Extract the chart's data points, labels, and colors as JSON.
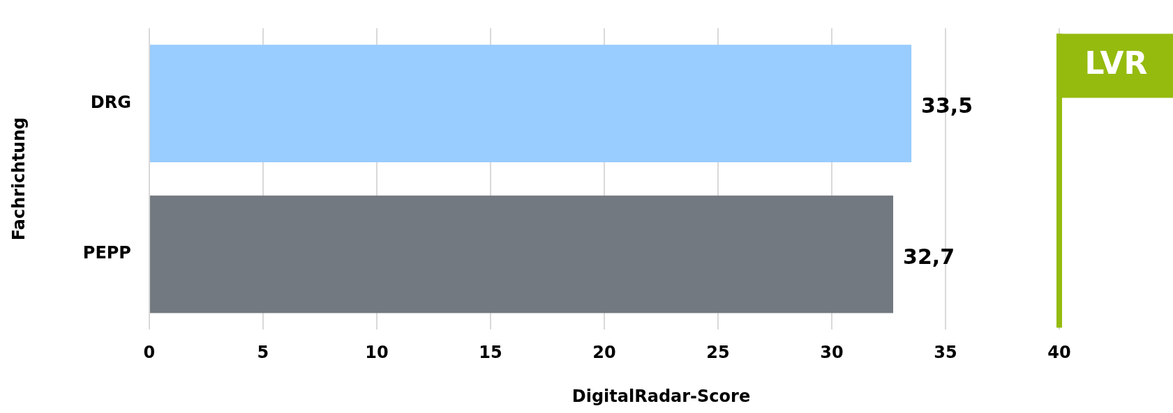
{
  "chart_data": {
    "type": "bar",
    "orientation": "horizontal",
    "xlabel": "DigitalRadar-Score",
    "ylabel": "Fachrichtung",
    "categories": [
      "DRG",
      "PEPP"
    ],
    "values": [
      33.5,
      32.7
    ],
    "colors": [
      "#99ccff",
      "#737980"
    ],
    "value_labels": [
      "33,5",
      "32,7"
    ],
    "xlim": [
      0,
      45
    ],
    "xticks": [
      0,
      5,
      10,
      15,
      20,
      25,
      30,
      35,
      40
    ],
    "grid": "x",
    "legend": false,
    "ref_lines": [
      {
        "axis": "x",
        "value": 40,
        "label": "LVR",
        "color": "#95bb0f"
      }
    ]
  }
}
